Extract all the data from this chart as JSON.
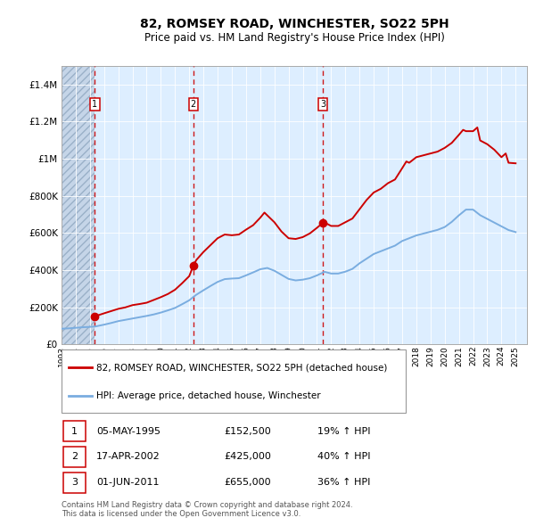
{
  "title": "82, ROMSEY ROAD, WINCHESTER, SO22 5PH",
  "subtitle": "Price paid vs. HM Land Registry's House Price Index (HPI)",
  "title_fontsize": 10,
  "subtitle_fontsize": 8.5,
  "ylim": [
    0,
    1500000
  ],
  "xlim_start": 1993.0,
  "xlim_end": 2025.8,
  "yticks": [
    0,
    200000,
    400000,
    600000,
    800000,
    1000000,
    1200000,
    1400000
  ],
  "ytick_labels": [
    "£0",
    "£200K",
    "£400K",
    "£600K",
    "£800K",
    "£1M",
    "£1.2M",
    "£1.4M"
  ],
  "xticks": [
    1993,
    1994,
    1995,
    1996,
    1997,
    1998,
    1999,
    2000,
    2001,
    2002,
    2003,
    2004,
    2005,
    2006,
    2007,
    2008,
    2009,
    2010,
    2011,
    2012,
    2013,
    2014,
    2015,
    2016,
    2017,
    2018,
    2019,
    2020,
    2021,
    2022,
    2023,
    2024,
    2025
  ],
  "sale_dates": [
    1995.35,
    2002.29,
    2011.42
  ],
  "sale_prices": [
    152500,
    425000,
    655000
  ],
  "sale_labels": [
    "1",
    "2",
    "3"
  ],
  "red_line_x": [
    1995.35,
    1995.6,
    1996.0,
    1996.5,
    1997.0,
    1997.5,
    1998.0,
    1998.5,
    1999.0,
    1999.5,
    2000.0,
    2000.5,
    2001.0,
    2001.5,
    2002.0,
    2002.29,
    2002.5,
    2003.0,
    2003.5,
    2004.0,
    2004.5,
    2005.0,
    2005.5,
    2006.0,
    2006.5,
    2007.0,
    2007.3,
    2007.5,
    2008.0,
    2008.5,
    2009.0,
    2009.5,
    2010.0,
    2010.5,
    2011.0,
    2011.42,
    2011.5,
    2012.0,
    2012.5,
    2013.0,
    2013.5,
    2014.0,
    2014.5,
    2015.0,
    2015.5,
    2016.0,
    2016.5,
    2017.0,
    2017.3,
    2017.5,
    2018.0,
    2018.5,
    2019.0,
    2019.5,
    2020.0,
    2020.5,
    2021.0,
    2021.3,
    2021.5,
    2022.0,
    2022.3,
    2022.5,
    2023.0,
    2023.5,
    2024.0,
    2024.3,
    2024.5,
    2025.0
  ],
  "red_line_y": [
    152500,
    158000,
    168000,
    180000,
    192000,
    200000,
    212000,
    218000,
    225000,
    240000,
    255000,
    272000,
    295000,
    330000,
    368000,
    425000,
    455000,
    498000,
    535000,
    572000,
    592000,
    588000,
    592000,
    618000,
    642000,
    682000,
    710000,
    695000,
    658000,
    608000,
    572000,
    568000,
    578000,
    598000,
    628000,
    655000,
    658000,
    638000,
    638000,
    658000,
    678000,
    728000,
    778000,
    818000,
    838000,
    868000,
    888000,
    948000,
    985000,
    978000,
    1008000,
    1018000,
    1028000,
    1038000,
    1058000,
    1085000,
    1128000,
    1155000,
    1148000,
    1148000,
    1168000,
    1098000,
    1078000,
    1048000,
    1008000,
    1028000,
    978000,
    975000
  ],
  "blue_line_x": [
    1993.0,
    1993.5,
    1994.0,
    1994.5,
    1995.0,
    1995.35,
    1995.5,
    1996.0,
    1996.5,
    1997.0,
    1997.5,
    1998.0,
    1998.5,
    1999.0,
    1999.5,
    2000.0,
    2000.5,
    2001.0,
    2001.5,
    2002.0,
    2002.29,
    2002.5,
    2003.0,
    2003.5,
    2004.0,
    2004.5,
    2005.0,
    2005.5,
    2006.0,
    2006.5,
    2007.0,
    2007.5,
    2008.0,
    2008.5,
    2009.0,
    2009.5,
    2010.0,
    2010.5,
    2011.0,
    2011.42,
    2011.5,
    2012.0,
    2012.5,
    2013.0,
    2013.5,
    2014.0,
    2014.5,
    2015.0,
    2015.5,
    2016.0,
    2016.5,
    2017.0,
    2017.5,
    2018.0,
    2018.5,
    2019.0,
    2019.5,
    2020.0,
    2020.5,
    2021.0,
    2021.5,
    2022.0,
    2022.5,
    2023.0,
    2023.5,
    2024.0,
    2024.5,
    2025.0
  ],
  "blue_line_y": [
    85000,
    87000,
    90000,
    93000,
    95000,
    97000,
    99000,
    107000,
    116000,
    126000,
    133000,
    140000,
    147000,
    154000,
    162000,
    172000,
    184000,
    197000,
    217000,
    238000,
    256000,
    268000,
    292000,
    315000,
    337000,
    352000,
    355000,
    357000,
    372000,
    388000,
    405000,
    412000,
    397000,
    375000,
    353000,
    345000,
    349000,
    357000,
    372000,
    387000,
    392000,
    382000,
    382000,
    392000,
    407000,
    437000,
    462000,
    487000,
    502000,
    517000,
    532000,
    557000,
    572000,
    587000,
    597000,
    607000,
    617000,
    632000,
    660000,
    695000,
    726000,
    726000,
    696000,
    676000,
    656000,
    636000,
    616000,
    605000
  ],
  "hatch_end_x": 1995.35,
  "line_color_red": "#cc0000",
  "line_color_blue": "#7aade0",
  "dot_color_red": "#cc0000",
  "background_plot": "#ddeeff",
  "grid_color": "#ffffff",
  "legend_label_red": "82, ROMSEY ROAD, WINCHESTER, SO22 5PH (detached house)",
  "legend_label_blue": "HPI: Average price, detached house, Winchester",
  "table_rows": [
    {
      "num": "1",
      "date": "05-MAY-1995",
      "price": "£152,500",
      "hpi": "19% ↑ HPI"
    },
    {
      "num": "2",
      "date": "17-APR-2002",
      "price": "£425,000",
      "hpi": "40% ↑ HPI"
    },
    {
      "num": "3",
      "date": "01-JUN-2011",
      "price": "£655,000",
      "hpi": "36% ↑ HPI"
    }
  ],
  "footnote": "Contains HM Land Registry data © Crown copyright and database right 2024.\nThis data is licensed under the Open Government Licence v3.0."
}
